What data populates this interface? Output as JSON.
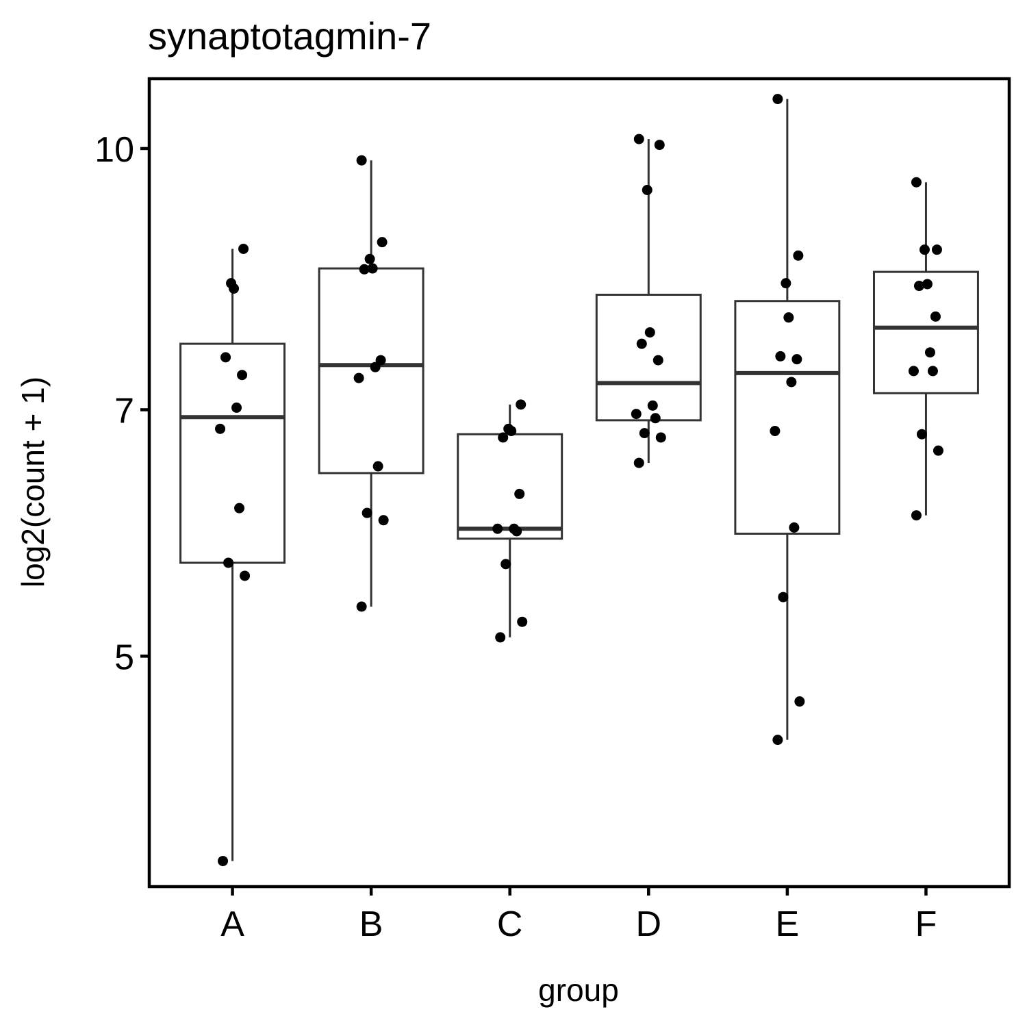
{
  "chart_data": {
    "type": "box",
    "title": "synaptotagmin-7",
    "xlabel": "group",
    "ylabel": "log2(count + 1)",
    "y_scale": "log2",
    "ylim": [
      3.65,
      11.0
    ],
    "y_ticks": [
      {
        "value": 5,
        "label": "5"
      },
      {
        "value": 7,
        "label": "7"
      },
      {
        "value": 10,
        "label": "10"
      }
    ],
    "grid": false,
    "categories": [
      "A",
      "B",
      "C",
      "D",
      "E",
      "F"
    ],
    "boxes": [
      {
        "group": "A",
        "whisker_low": 3.78,
        "q1": 5.68,
        "median": 6.93,
        "q3": 7.66,
        "whisker_high": 8.72
      },
      {
        "group": "B",
        "whisker_low": 5.35,
        "q1": 6.42,
        "median": 7.44,
        "q3": 8.49,
        "whisker_high": 9.84
      },
      {
        "group": "C",
        "whisker_low": 5.13,
        "q1": 5.87,
        "median": 5.95,
        "q3": 6.77,
        "whisker_high": 7.05
      },
      {
        "group": "D",
        "whisker_low": 6.51,
        "q1": 6.9,
        "median": 7.26,
        "q3": 8.19,
        "whisker_high": 10.13
      },
      {
        "group": "E",
        "whisker_low": 4.46,
        "q1": 5.91,
        "median": 7.36,
        "q3": 8.12,
        "whisker_high": 10.7
      },
      {
        "group": "F",
        "whisker_low": 6.06,
        "q1": 7.16,
        "median": 7.83,
        "q3": 8.45,
        "whisker_high": 9.55
      }
    ],
    "points": [
      {
        "group": "A",
        "values": [
          3.78,
          5.58,
          5.68,
          6.12,
          6.82,
          7.02,
          7.34,
          7.52,
          8.26,
          8.32,
          8.72
        ]
      },
      {
        "group": "B",
        "values": [
          5.35,
          6.02,
          6.08,
          6.48,
          7.31,
          7.42,
          7.49,
          8.48,
          8.49,
          8.6,
          8.8,
          9.84
        ]
      },
      {
        "group": "C",
        "values": [
          5.13,
          5.24,
          5.67,
          5.93,
          5.95,
          5.95,
          6.24,
          6.74,
          6.8,
          6.82,
          7.05
        ]
      },
      {
        "group": "D",
        "values": [
          6.51,
          6.74,
          6.78,
          6.92,
          6.96,
          7.04,
          7.49,
          7.66,
          7.78,
          9.45,
          10.05,
          10.13
        ]
      },
      {
        "group": "E",
        "values": [
          4.46,
          4.7,
          5.42,
          5.96,
          6.8,
          7.27,
          7.5,
          7.53,
          7.94,
          8.32,
          8.64,
          10.7
        ]
      },
      {
        "group": "F",
        "values": [
          6.06,
          6.62,
          6.77,
          7.38,
          7.38,
          7.57,
          7.95,
          8.29,
          8.31,
          8.71,
          8.71,
          9.55
        ]
      }
    ]
  }
}
